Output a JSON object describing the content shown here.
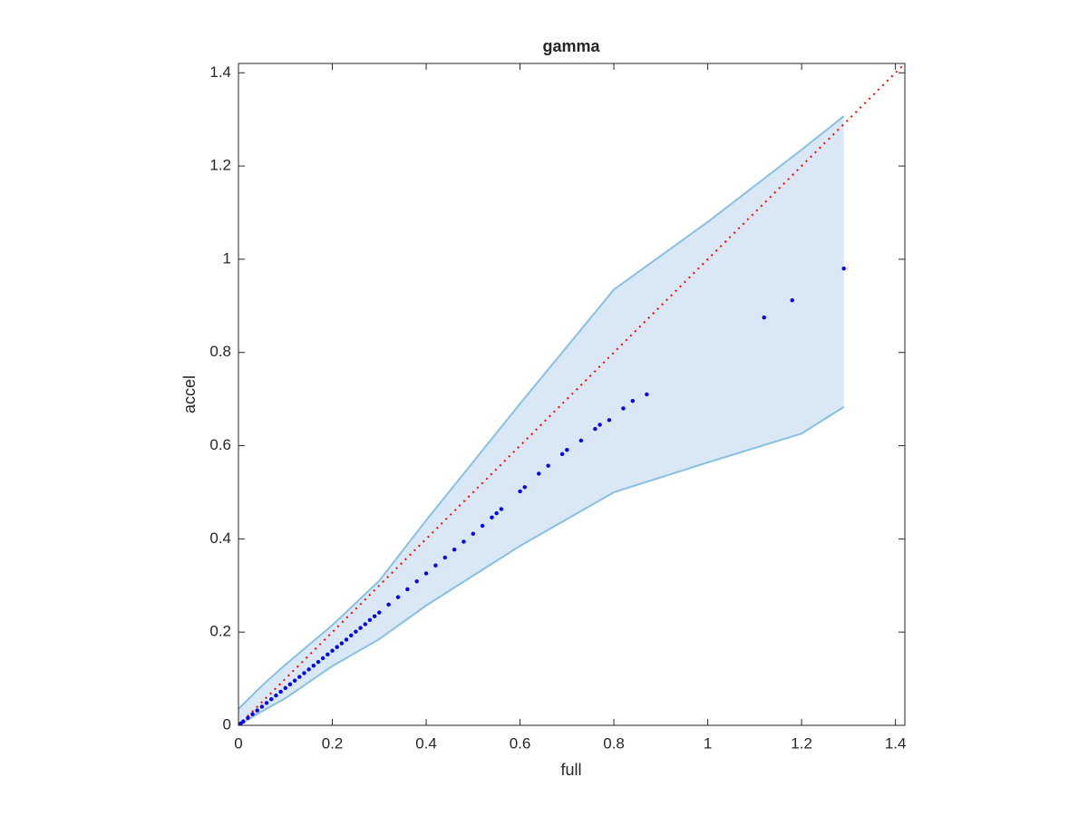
{
  "chart_data": {
    "type": "scatter",
    "title": "gamma",
    "xlabel": "full",
    "ylabel": "accel",
    "xlim": [
      0,
      1.42
    ],
    "ylim": [
      0,
      1.42
    ],
    "xticks": [
      0,
      0.2,
      0.4,
      0.6,
      0.8,
      1,
      1.2,
      1.4
    ],
    "yticks": [
      0,
      0.2,
      0.4,
      0.6,
      0.8,
      1,
      1.2,
      1.4
    ],
    "band": {
      "fill": "#d9e8f4",
      "color": "#88bfe3",
      "x": [
        0,
        0.05,
        0.1,
        0.2,
        0.3,
        0.4,
        0.6,
        0.8,
        1.0,
        1.2,
        1.29
      ],
      "upper": [
        0.035,
        0.085,
        0.13,
        0.215,
        0.31,
        0.44,
        0.69,
        0.935,
        1.08,
        1.235,
        1.307
      ],
      "lower": [
        0,
        0.03,
        0.058,
        0.127,
        0.185,
        0.257,
        0.385,
        0.5,
        0.564,
        0.626,
        0.683
      ]
    },
    "reference_line": {
      "color": "#ff0000",
      "x": [
        0,
        1.42
      ],
      "y": [
        0,
        1.42
      ]
    },
    "points": {
      "color": "#0000ff",
      "x": [
        0.005,
        0.01,
        0.02,
        0.03,
        0.04,
        0.05,
        0.06,
        0.07,
        0.08,
        0.09,
        0.1,
        0.11,
        0.12,
        0.13,
        0.14,
        0.15,
        0.16,
        0.17,
        0.18,
        0.19,
        0.2,
        0.21,
        0.22,
        0.23,
        0.24,
        0.25,
        0.26,
        0.27,
        0.28,
        0.29,
        0.3,
        0.32,
        0.34,
        0.36,
        0.38,
        0.4,
        0.42,
        0.44,
        0.46,
        0.48,
        0.5,
        0.52,
        0.54,
        0.55,
        0.56,
        0.6,
        0.61,
        0.64,
        0.66,
        0.69,
        0.7,
        0.73,
        0.76,
        0.77,
        0.79,
        0.82,
        0.84,
        0.87,
        1.12,
        1.18,
        1.29
      ],
      "y": [
        0.004,
        0.008,
        0.016,
        0.024,
        0.032,
        0.04,
        0.048,
        0.056,
        0.064,
        0.072,
        0.08,
        0.088,
        0.096,
        0.104,
        0.112,
        0.12,
        0.128,
        0.136,
        0.144,
        0.152,
        0.16,
        0.168,
        0.176,
        0.184,
        0.193,
        0.201,
        0.209,
        0.217,
        0.226,
        0.234,
        0.242,
        0.259,
        0.275,
        0.292,
        0.309,
        0.326,
        0.343,
        0.36,
        0.377,
        0.394,
        0.411,
        0.428,
        0.446,
        0.455,
        0.464,
        0.502,
        0.511,
        0.54,
        0.557,
        0.582,
        0.591,
        0.611,
        0.636,
        0.645,
        0.655,
        0.68,
        0.696,
        0.71,
        0.875,
        0.912,
        0.98
      ]
    }
  }
}
